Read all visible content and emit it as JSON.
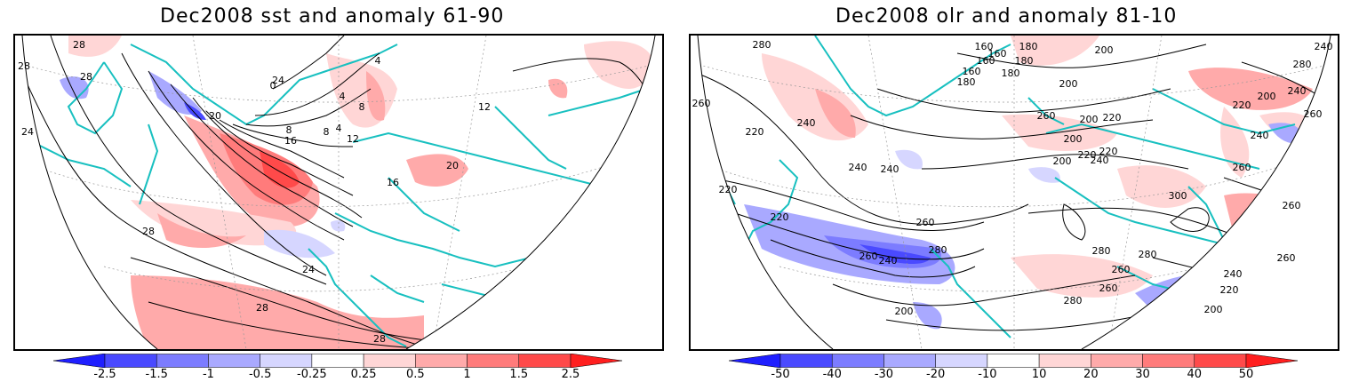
{
  "maps": [
    {
      "title": "Dec2008 sst and anomaly 61-90",
      "colorbar": {
        "labels": [
          "-2.5",
          "-1.5",
          "-1",
          "-0.5",
          "-0.25",
          "0.25",
          "0.5",
          "1",
          "1.5",
          "2.5"
        ],
        "colors": [
          "#1f1fff",
          "#4a4aff",
          "#7c7cff",
          "#a9a9ff",
          "#d6d6ff",
          "#ffffff",
          "#ffd6d6",
          "#ffaaaa",
          "#ff7b7b",
          "#ff4a4a",
          "#ff1f1f"
        ]
      },
      "contour_labels": [
        "28",
        "28",
        "28",
        "24",
        "4",
        "0",
        "4",
        "8",
        "8",
        "4",
        "8",
        "12",
        "16",
        "20",
        "16",
        "20",
        "12",
        "28",
        "24",
        "28",
        "28",
        "24"
      ]
    },
    {
      "title": "Dec2008 olr and anomaly 81-10",
      "colorbar": {
        "labels": [
          "-50",
          "-40",
          "-30",
          "-20",
          "-10",
          "10",
          "20",
          "30",
          "40",
          "50"
        ],
        "colors": [
          "#1f1fff",
          "#4a4aff",
          "#7c7cff",
          "#a9a9ff",
          "#d6d6ff",
          "#ffffff",
          "#ffd6d6",
          "#ffaaaa",
          "#ff7b7b",
          "#ff4a4a",
          "#ff1f1f"
        ]
      },
      "contour_labels": [
        "280",
        "180",
        "160",
        "160",
        "180",
        "160",
        "160",
        "180",
        "200",
        "240",
        "260",
        "180",
        "200",
        "280",
        "260",
        "240",
        "200",
        "220",
        "240",
        "260",
        "200",
        "220",
        "200",
        "220",
        "240",
        "240",
        "220",
        "260",
        "220",
        "240",
        "240",
        "220",
        "220",
        "200",
        "260",
        "300",
        "280",
        "280",
        "260",
        "240",
        "220",
        "200",
        "260",
        "280",
        "260",
        "240",
        "260",
        "200",
        "260",
        "280"
      ]
    }
  ]
}
